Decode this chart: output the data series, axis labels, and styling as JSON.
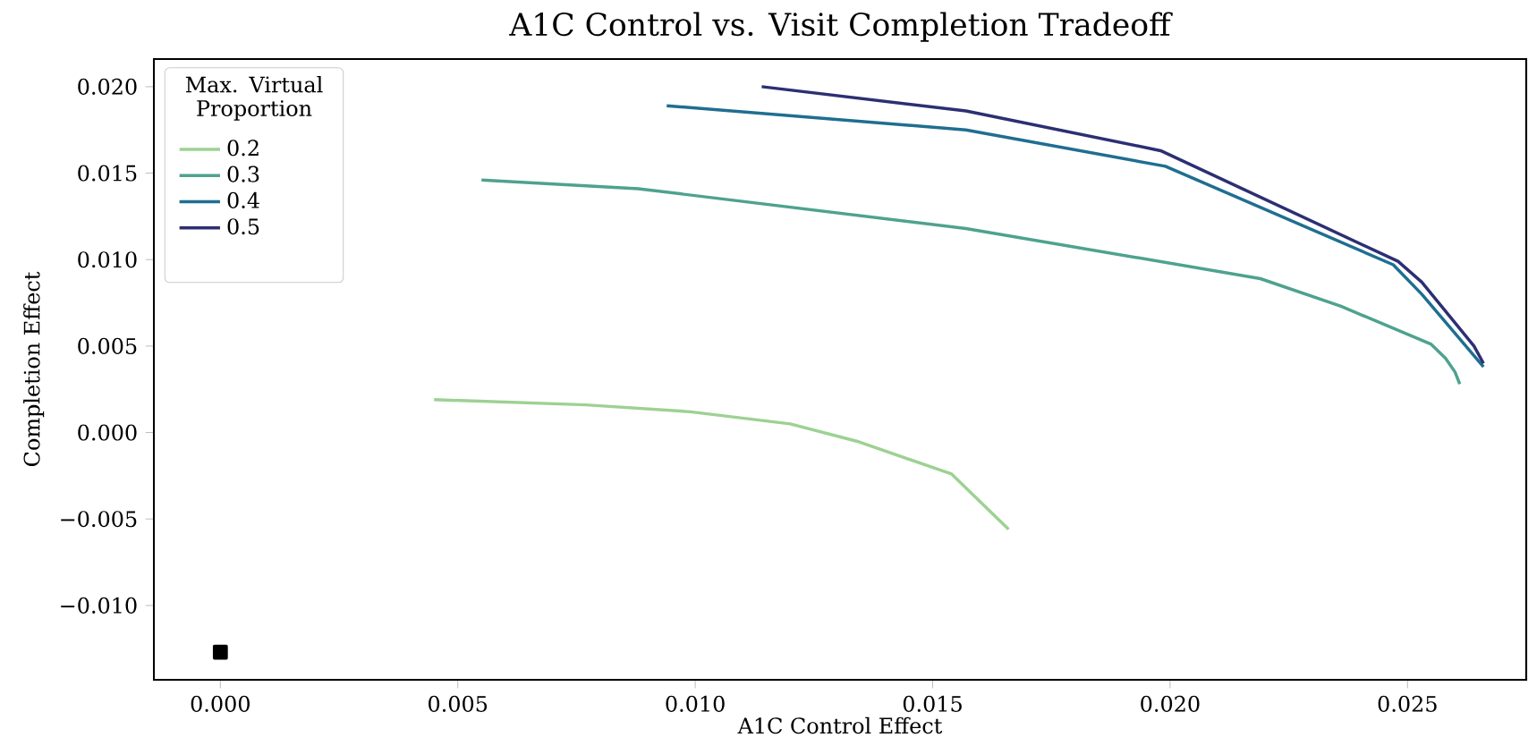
{
  "chart_data": {
    "type": "line",
    "title": "A1C Control vs. Visit Completion Tradeoff",
    "xlabel": "A1C Control Effect",
    "ylabel": "Completion Effect",
    "legend_title": "Max. Virtual Proportion",
    "legend": "top left",
    "grid": false,
    "xlim": [
      -0.0014,
      0.0275
    ],
    "ylim": [
      -0.0143,
      0.0216
    ],
    "xticks": [
      {
        "value": 0,
        "label": "0.000"
      },
      {
        "value": 0.005,
        "label": "0.005"
      },
      {
        "value": 0.01,
        "label": "0.010"
      },
      {
        "value": 0.015,
        "label": "0.015"
      },
      {
        "value": 0.02,
        "label": "0.020"
      },
      {
        "value": 0.025,
        "label": "0.025"
      }
    ],
    "yticks": [
      {
        "value": -0.01,
        "label": "−0.010"
      },
      {
        "value": -0.005,
        "label": "−0.005"
      },
      {
        "value": 0,
        "label": "0.000"
      },
      {
        "value": 0.005,
        "label": "0.005"
      },
      {
        "value": 0.01,
        "label": "0.010"
      },
      {
        "value": 0.015,
        "label": "0.015"
      },
      {
        "value": 0.02,
        "label": "0.020"
      }
    ],
    "series": [
      {
        "name": "0.2",
        "color": "#9dd193",
        "x": [
          0.0045,
          0.0077,
          0.0099,
          0.012,
          0.0134,
          0.0154,
          0.0166
        ],
        "values": [
          0.0019,
          0.0016,
          0.0012,
          0.0005,
          -0.0005,
          -0.0024,
          -0.0056
        ]
      },
      {
        "name": "0.3",
        "color": "#4ea28f",
        "x": [
          0.0055,
          0.0088,
          0.0157,
          0.0219,
          0.0236,
          0.0255,
          0.0258,
          0.026,
          0.0261
        ],
        "values": [
          0.0146,
          0.0141,
          0.0118,
          0.0089,
          0.0073,
          0.0051,
          0.0043,
          0.0035,
          0.0028
        ]
      },
      {
        "name": "0.4",
        "color": "#1f6e91",
        "x": [
          0.0094,
          0.0157,
          0.0199,
          0.0247,
          0.0253,
          0.0266
        ],
        "values": [
          0.0189,
          0.0175,
          0.0154,
          0.0097,
          0.008,
          0.0038
        ]
      },
      {
        "name": "0.5",
        "color": "#2c2f72",
        "x": [
          0.0114,
          0.0157,
          0.0198,
          0.0248,
          0.0253,
          0.0264,
          0.0266
        ],
        "values": [
          0.02,
          0.0186,
          0.0163,
          0.0099,
          0.0087,
          0.005,
          0.004
        ]
      },
      {
        "type": "scatter",
        "marker": "square",
        "color": "#000000",
        "x": [
          0
        ],
        "values": [
          -0.0127
        ]
      }
    ]
  }
}
